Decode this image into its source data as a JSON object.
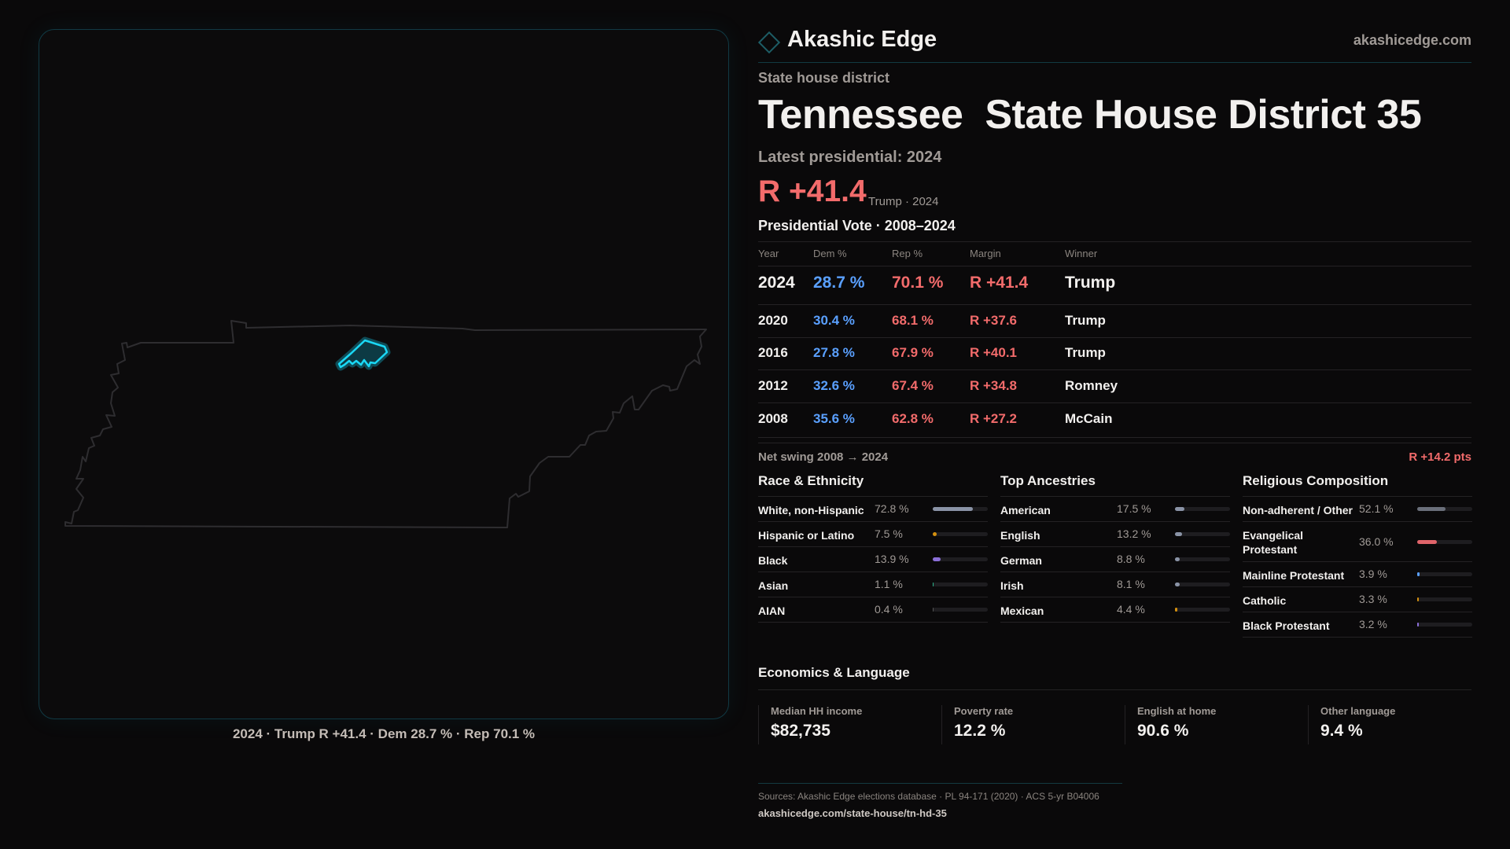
{
  "brand": {
    "name": "Akashic Edge",
    "site": "akashicedge.com",
    "logo_icon": "diamond-icon",
    "accent": "#1d5d66"
  },
  "district": {
    "kind": "State house district",
    "state": "Tennessee",
    "name": "State House District 35"
  },
  "latest": {
    "label": "Latest presidential: 2024",
    "margin": "R +41.4",
    "sub": "Trump · 2024"
  },
  "map": {
    "caption": "2024 · Trump R +41.4 · Dem 28.7 % · Rep 70.1 %",
    "highlight_color": "#1ad8f5"
  },
  "votes": {
    "title": "Presidential Vote · 2008–2024",
    "headers": [
      "Year",
      "Dem %",
      "Rep %",
      "Margin",
      "Winner"
    ],
    "rows": [
      {
        "year": "2024",
        "dem": "28.7 %",
        "rep": "70.1 %",
        "margin": "R +41.4",
        "winner": "Trump"
      },
      {
        "year": "2020",
        "dem": "30.4 %",
        "rep": "68.1 %",
        "margin": "R +37.6",
        "winner": "Trump"
      },
      {
        "year": "2016",
        "dem": "27.8 %",
        "rep": "67.9 %",
        "margin": "R +40.1",
        "winner": "Trump"
      },
      {
        "year": "2012",
        "dem": "32.6 %",
        "rep": "67.4 %",
        "margin": "R +34.8",
        "winner": "Romney"
      },
      {
        "year": "2008",
        "dem": "35.6 %",
        "rep": "62.8 %",
        "margin": "R +27.2",
        "winner": "McCain"
      }
    ],
    "swing_label": "Net swing 2008 → 2024",
    "swing_value": "R +14.2 pts",
    "colors": {
      "dem": "#5aa0ff",
      "rep": "#f26b6b"
    }
  },
  "sections": [
    {
      "title": "Race & Ethnicity",
      "items": [
        {
          "label": "White, non-Hispanic",
          "value": "72.8 %",
          "pct": 72.8,
          "color": "#8a93a6"
        },
        {
          "label": "Hispanic or Latino",
          "value": "7.5 %",
          "pct": 7.5,
          "color": "#d4900f"
        },
        {
          "label": "Black",
          "value": "13.9 %",
          "pct": 13.9,
          "color": "#8b6fd8"
        },
        {
          "label": "Asian",
          "value": "1.1 %",
          "pct": 1.1,
          "color": "#2bb38a"
        },
        {
          "label": "AIAN",
          "value": "0.4 %",
          "pct": 0.4,
          "color": "#555"
        }
      ]
    },
    {
      "title": "Top Ancestries",
      "items": [
        {
          "label": "American",
          "value": "17.5 %",
          "pct": 17.5,
          "color": "#8a93a6"
        },
        {
          "label": "English",
          "value": "13.2 %",
          "pct": 13.2,
          "color": "#8a93a6"
        },
        {
          "label": "German",
          "value": "8.8 %",
          "pct": 8.8,
          "color": "#8a93a6"
        },
        {
          "label": "Irish",
          "value": "8.1 %",
          "pct": 8.1,
          "color": "#8a93a6"
        },
        {
          "label": "Mexican",
          "value": "4.4 %",
          "pct": 4.4,
          "color": "#d4900f"
        }
      ]
    },
    {
      "title": "Religious Composition",
      "items": [
        {
          "label": "Non-adherent / Other",
          "value": "52.1 %",
          "pct": 52.1,
          "color": "#6a6f7a"
        },
        {
          "label": "Evangelical Protestant",
          "value": "36.0 %",
          "pct": 36.0,
          "color": "#e0646a"
        },
        {
          "label": "Mainline Protestant",
          "value": "3.9 %",
          "pct": 3.9,
          "color": "#5aa0ff"
        },
        {
          "label": "Catholic",
          "value": "3.3 %",
          "pct": 3.3,
          "color": "#d4900f"
        },
        {
          "label": "Black Protestant",
          "value": "3.2 %",
          "pct": 3.2,
          "color": "#8b6fd8"
        }
      ]
    }
  ],
  "economics": {
    "title": "Economics & Language",
    "cards": [
      {
        "label": "Median HH income",
        "value": "$82,735"
      },
      {
        "label": "Poverty rate",
        "value": "12.2 %"
      },
      {
        "label": "English at home",
        "value": "90.6 %"
      },
      {
        "label": "Other language",
        "value": "9.4 %"
      }
    ]
  },
  "footer": {
    "sources": "Sources: Akashic Edge elections database · PL 94-171 (2020) · ACS 5-yr B04006",
    "url": "akashicedge.com/state-house/tn-hd-35"
  }
}
